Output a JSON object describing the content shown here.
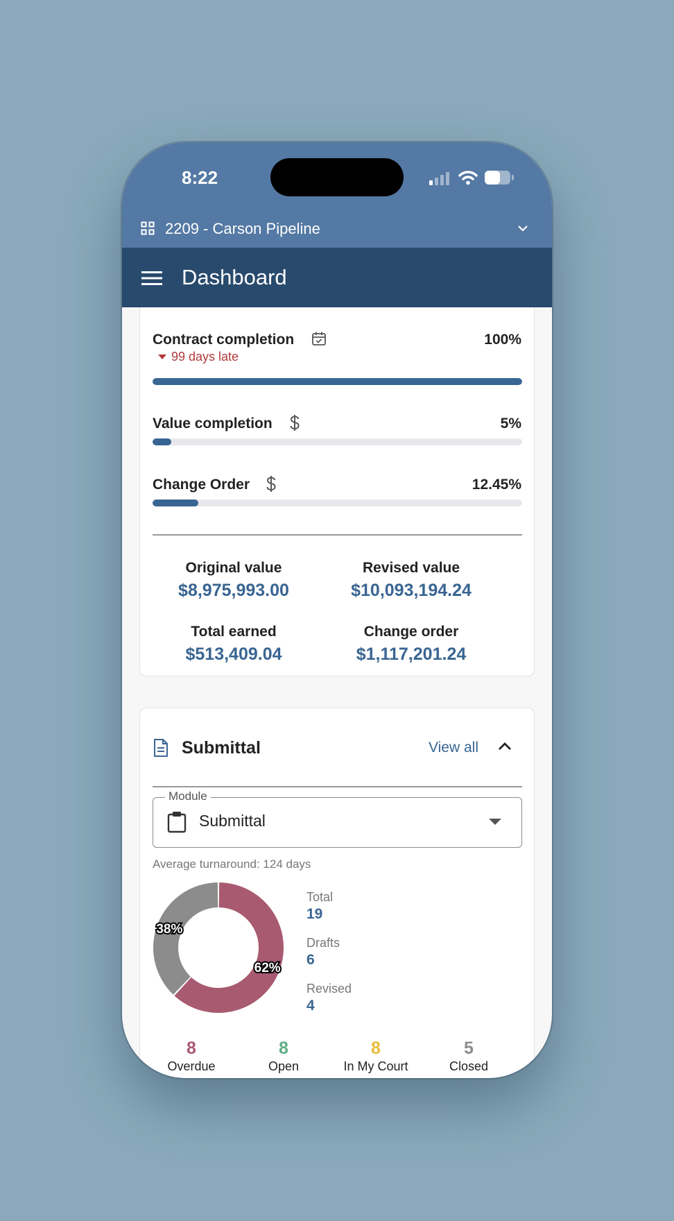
{
  "status_bar": {
    "time": "8:22"
  },
  "project": {
    "name": "2209 - Carson Pipeline"
  },
  "appbar": {
    "title": "Dashboard"
  },
  "progress": {
    "contract_completion": {
      "label": "Contract completion",
      "percent_text": "100%",
      "value": 1.0,
      "late_text": "99 days late"
    },
    "value_completion": {
      "label": "Value completion",
      "percent_text": "5%",
      "value": 0.05
    },
    "change_order": {
      "label": "Change Order",
      "percent_text": "12.45%",
      "value": 0.1245
    }
  },
  "stats": {
    "original_value": {
      "label": "Original value",
      "value": "$8,975,993.00"
    },
    "revised_value": {
      "label": "Revised value",
      "value": "$10,093,194.24"
    },
    "total_earned": {
      "label": "Total earned",
      "value": "$513,409.04"
    },
    "change_order": {
      "label": "Change order",
      "value": "$1,117,201.24"
    }
  },
  "submittal": {
    "title": "Submittal",
    "view_all": "View all",
    "module_label": "Module",
    "module_value": "Submittal",
    "avg_turnaround": "Average turnaround: 124 days",
    "chart_data": {
      "type": "pie",
      "slices": [
        {
          "label": "62%",
          "value": 62,
          "color": "#a85a70"
        },
        {
          "label": "38%",
          "value": 38,
          "color": "#8c8c8c"
        }
      ]
    },
    "totals": {
      "total": {
        "label": "Total",
        "value": "19"
      },
      "drafts": {
        "label": "Drafts",
        "value": "6"
      },
      "revised": {
        "label": "Revised",
        "value": "4"
      }
    },
    "counts": [
      {
        "label": "Overdue",
        "value": "8",
        "color": "#a85a70"
      },
      {
        "label": "Open",
        "value": "8",
        "color": "#5fae85"
      },
      {
        "label": "In My Court",
        "value": "8",
        "color": "#e8bc3a"
      },
      {
        "label": "Closed",
        "value": "5",
        "color": "#8c8c8c"
      }
    ]
  },
  "colors": {
    "brand": "#5479a4",
    "appbar": "#284a6d",
    "accent": "#396592",
    "late": "#b23a3a"
  }
}
